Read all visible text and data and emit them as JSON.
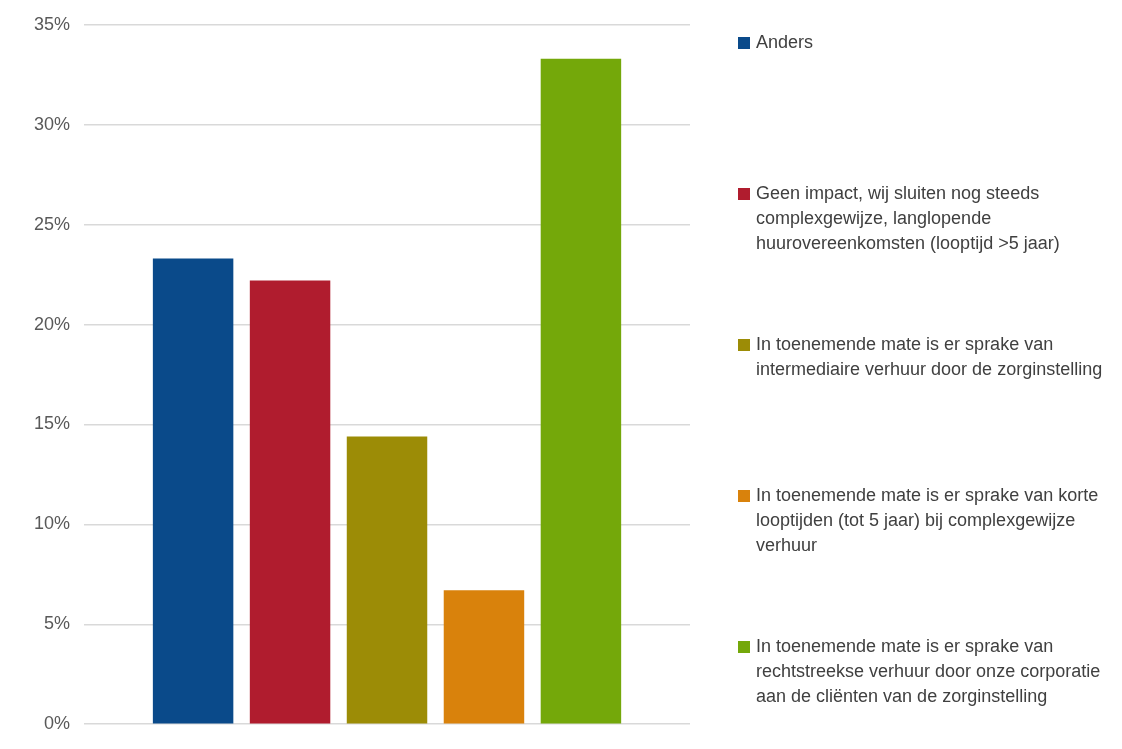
{
  "chart_data": {
    "type": "bar",
    "categories": [
      null
    ],
    "series": [
      {
        "name": "Anders",
        "color": "#0a4a8a",
        "values": [
          23.3
        ]
      },
      {
        "name": "Geen impact, wij sluiten nog steeds complexgewijze, langlopende huurovereenkomsten (looptijd >5 jaar)",
        "color": "#b01c2e",
        "values": [
          22.2
        ]
      },
      {
        "name": "In toenemende mate is er sprake van intermediaire verhuur door de zorginstelling",
        "color": "#9c8c06",
        "values": [
          14.4
        ]
      },
      {
        "name": "In toenemende mate is er sprake van korte looptijden (tot 5 jaar) bij complexgewijze verhuur",
        "color": "#d9820c",
        "values": [
          6.7
        ]
      },
      {
        "name": "In toenemende mate is er sprake van rechtstreekse verhuur door onze corporatie aan de cliënten van de zorginstelling",
        "color": "#74a80a",
        "values": [
          33.3
        ]
      }
    ],
    "ylim": [
      0,
      35
    ],
    "yticks": [
      {
        "value": 0,
        "label": "0%"
      },
      {
        "value": 5,
        "label": "5%"
      },
      {
        "value": 10,
        "label": "10%"
      },
      {
        "value": 15,
        "label": "15%"
      },
      {
        "value": 20,
        "label": "20%"
      },
      {
        "value": 25,
        "label": "25%"
      },
      {
        "value": 30,
        "label": "30%"
      },
      {
        "value": 35,
        "label": "35%"
      }
    ],
    "grid": "y",
    "legend": "right",
    "tick_labels": "y"
  }
}
